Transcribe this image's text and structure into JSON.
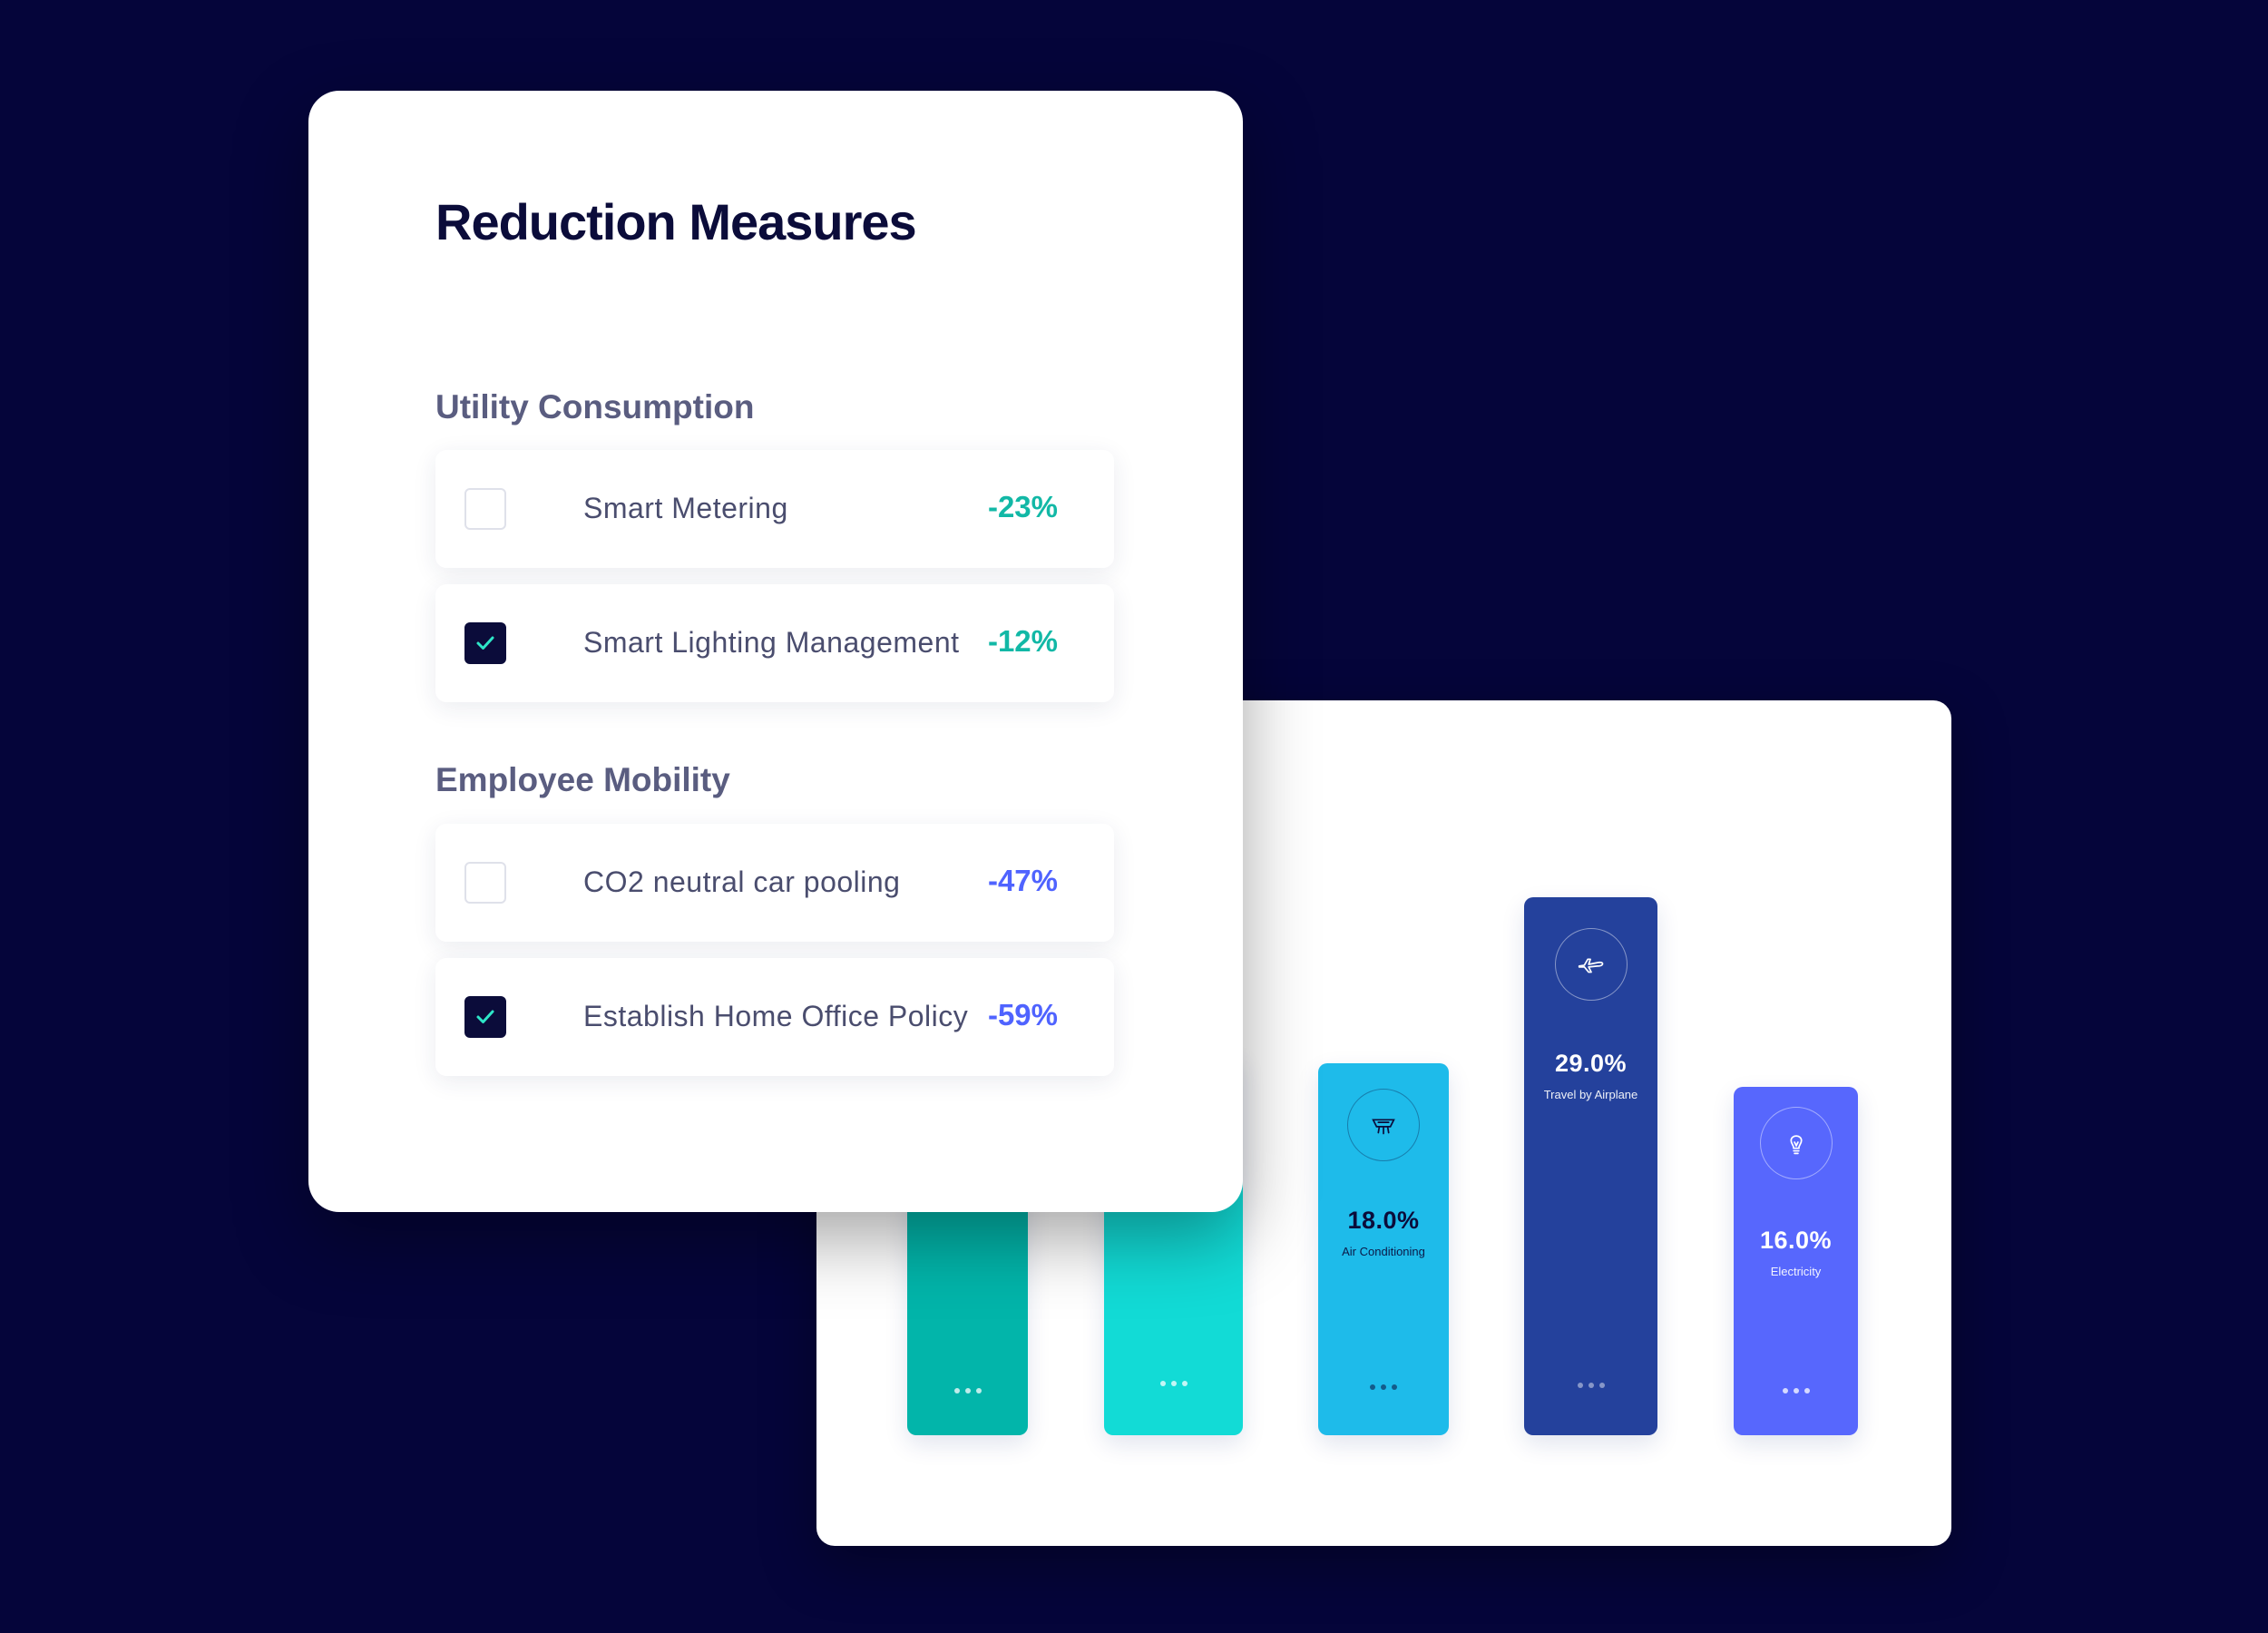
{
  "colors": {
    "background": "#05053a",
    "title": "#0b0c3a",
    "utility_value": "#12b8a6",
    "mobility_value": "#4f63ff",
    "bar_teal_dark": "#02b5aa",
    "bar_teal_light": "#12dbd6",
    "bar_sky": "#1ebbea",
    "bar_navy": "#24419c",
    "bar_indigo": "#5767fd"
  },
  "measures": {
    "title": "Reduction Measures",
    "sections": [
      {
        "label": "Utility Consumption",
        "items": [
          {
            "label": "Smart Metering",
            "value": "-23%",
            "checked": false
          },
          {
            "label": "Smart Lighting Management",
            "value": "-12%",
            "checked": true
          }
        ]
      },
      {
        "label": "Employee Mobility",
        "items": [
          {
            "label": "CO2 neutral car pooling",
            "value": "-47%",
            "checked": false
          },
          {
            "label": "Establish Home Office Policy",
            "value": "-59%",
            "checked": true
          }
        ]
      }
    ]
  },
  "chart_data": {
    "type": "bar",
    "title": "",
    "categories": [
      "",
      "",
      "Air Conditioning",
      "Travel by Airplane",
      "Electricity"
    ],
    "values": [
      null,
      null,
      18.0,
      29.0,
      16.0
    ],
    "value_labels": [
      "",
      "",
      "18.0%",
      "29.0%",
      "16.0%"
    ],
    "icons": [
      "",
      "",
      "air-conditioner-icon",
      "airplane-icon",
      "lightbulb-icon"
    ],
    "bar_colors": [
      "#02b5aa",
      "#12dbd6",
      "#1ebbea",
      "#24419c",
      "#5767fd"
    ],
    "ylim": [
      0,
      29.0
    ],
    "grid": false
  }
}
